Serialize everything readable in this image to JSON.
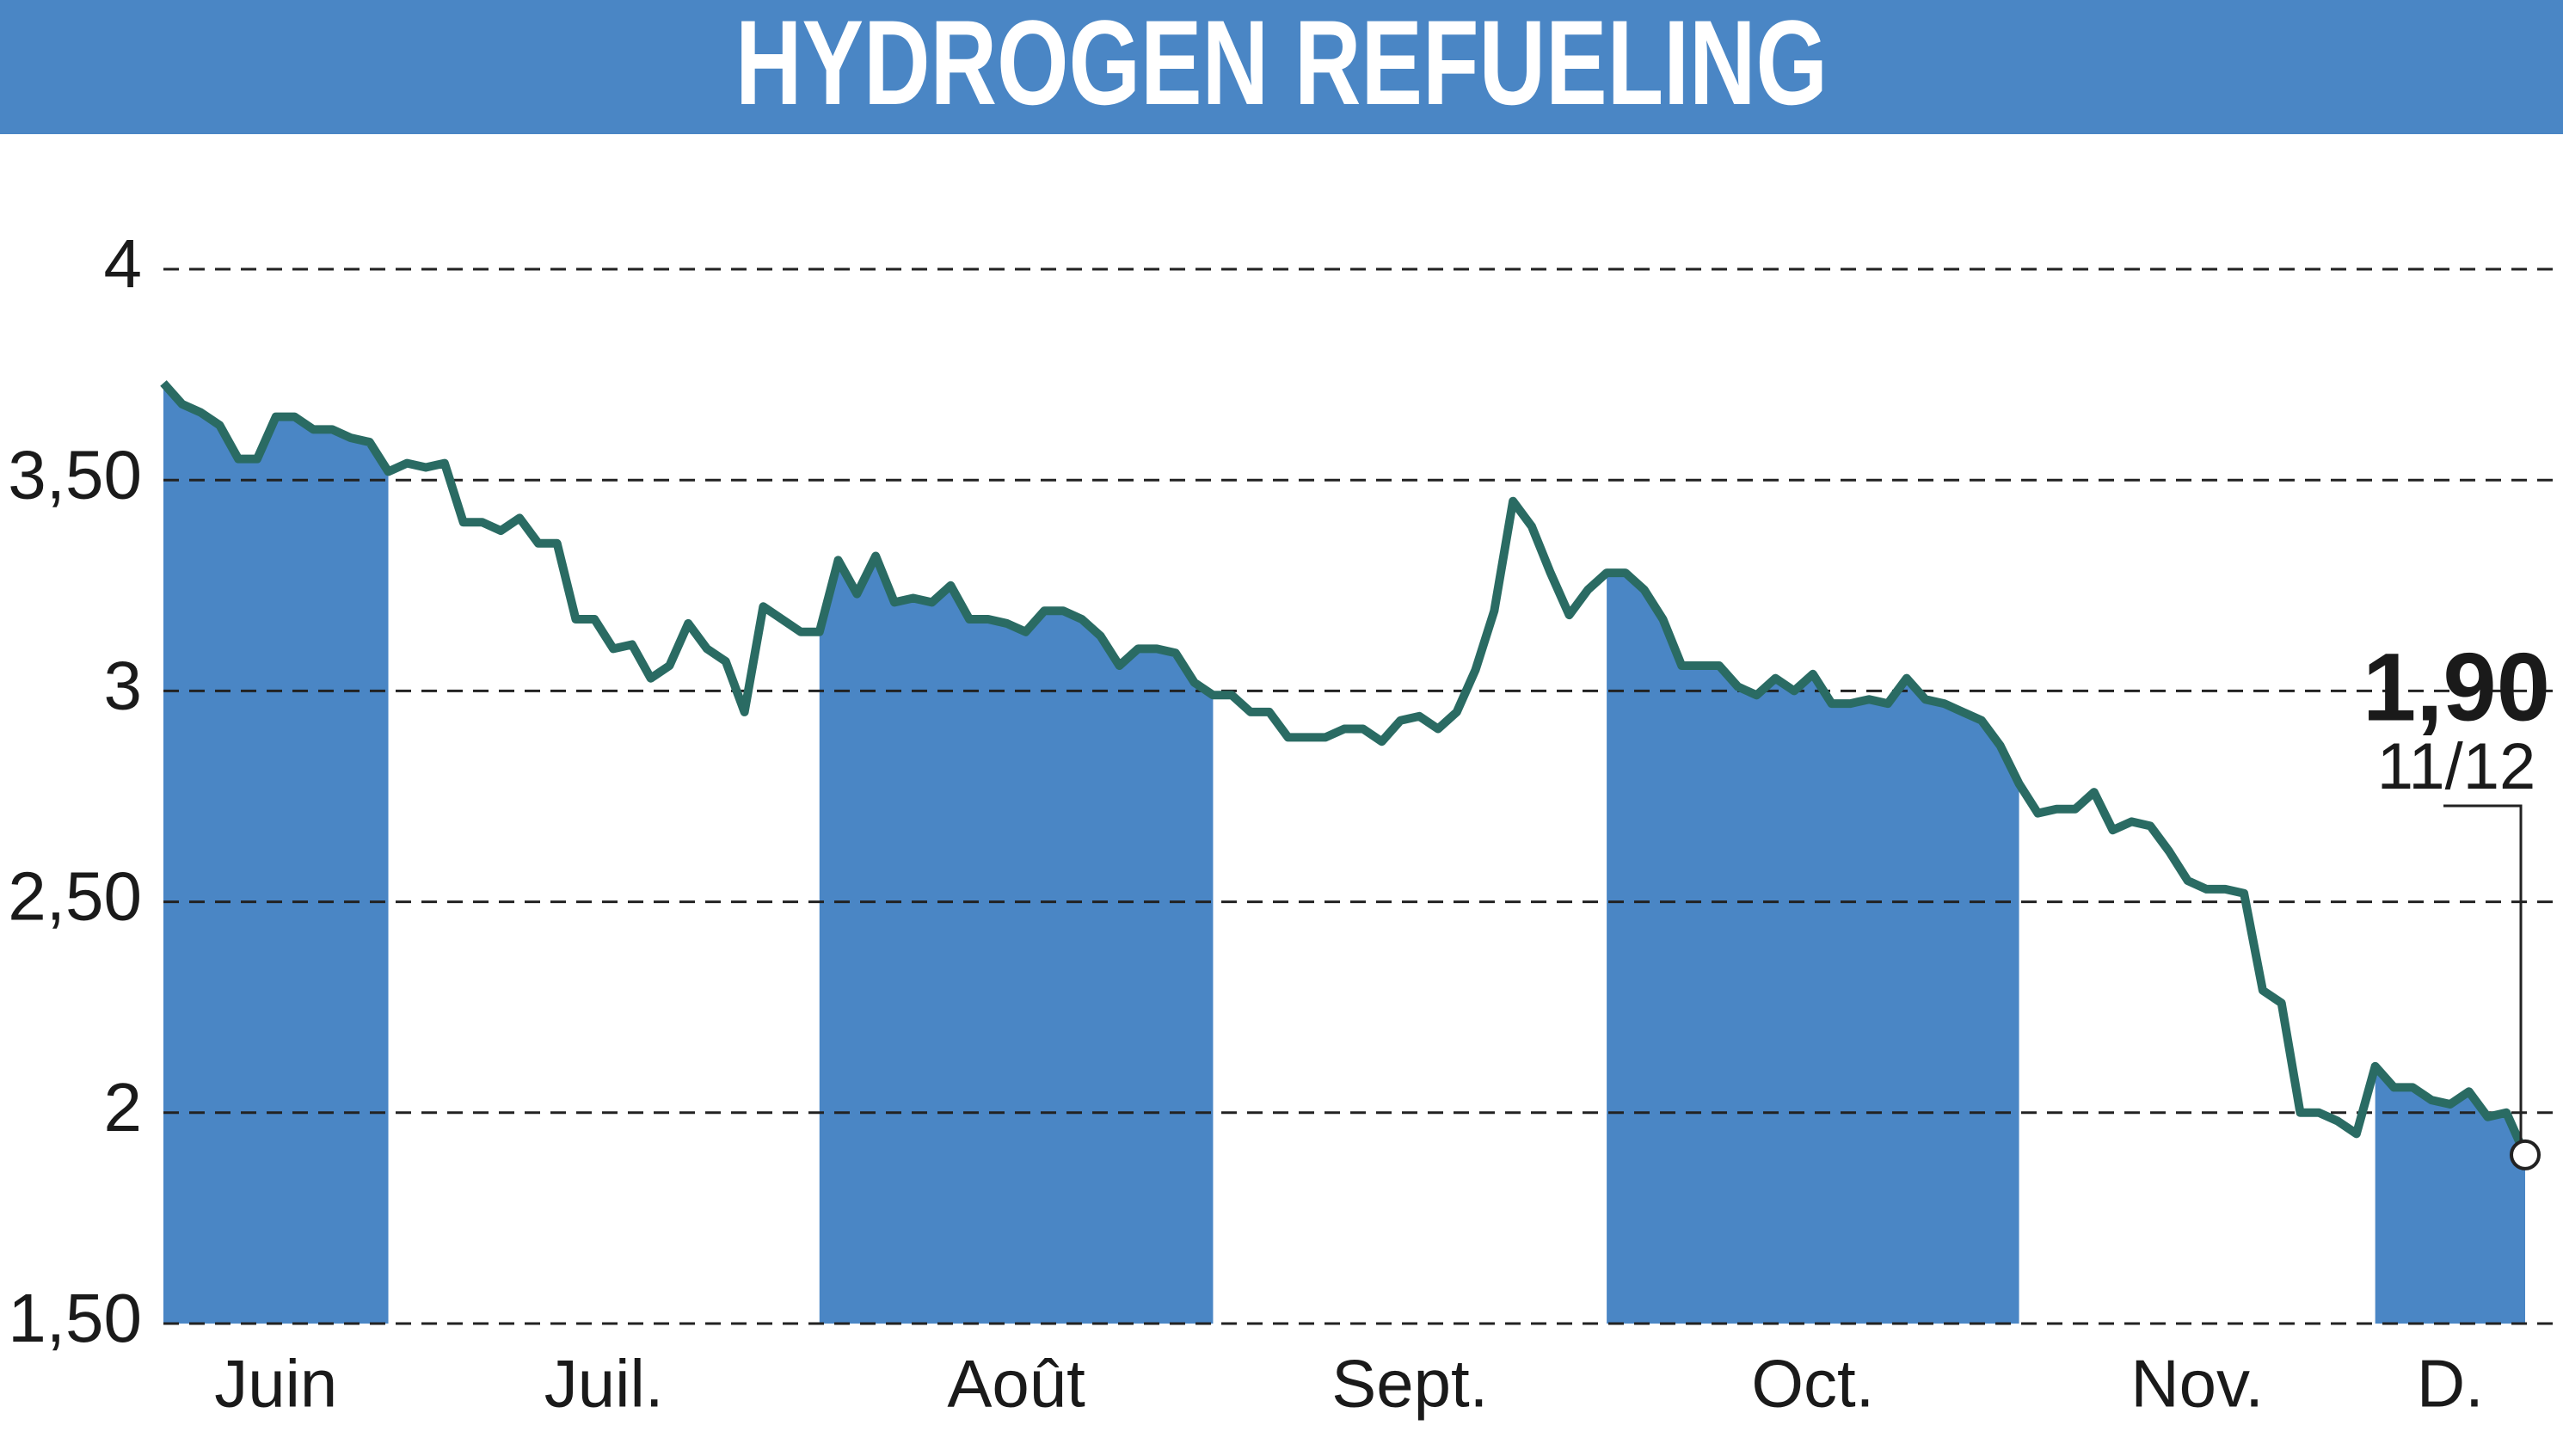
{
  "chart_data": {
    "type": "line",
    "title": "HYDROGEN REFUELING",
    "categories": [
      "Juin",
      null,
      null,
      null,
      null,
      null,
      null,
      null,
      null,
      null,
      null,
      null,
      "Juil.",
      null,
      null,
      null,
      null,
      null,
      null,
      null,
      null,
      null,
      null,
      null,
      null,
      null,
      null,
      null,
      null,
      null,
      null,
      null,
      null,
      null,
      null,
      "Août",
      null,
      null,
      null,
      null,
      null,
      null,
      null,
      null,
      null,
      null,
      null,
      null,
      null,
      null,
      null,
      null,
      null,
      null,
      null,
      null,
      "Sept.",
      null,
      null,
      null,
      null,
      null,
      null,
      null,
      null,
      null,
      null,
      null,
      null,
      null,
      null,
      null,
      null,
      null,
      null,
      null,
      null,
      "Oct.",
      null,
      null,
      null,
      null,
      null,
      null,
      null,
      null,
      null,
      null,
      null,
      null,
      null,
      null,
      null,
      null,
      null,
      null,
      null,
      null,
      null,
      "Nov.",
      null,
      null,
      null,
      null,
      null,
      null,
      null,
      null,
      null,
      null,
      null,
      null,
      null,
      null,
      null,
      null,
      null,
      null,
      "D.",
      null,
      null,
      null,
      null,
      null,
      null,
      null,
      null
    ],
    "values": [
      3.73,
      3.68,
      3.66,
      3.63,
      3.55,
      3.55,
      3.65,
      3.65,
      3.62,
      3.62,
      3.6,
      3.59,
      3.52,
      3.54,
      3.53,
      3.54,
      3.4,
      3.4,
      3.38,
      3.41,
      3.35,
      3.35,
      3.17,
      3.17,
      3.1,
      3.11,
      3.03,
      3.06,
      3.16,
      3.1,
      3.07,
      2.95,
      3.2,
      3.17,
      3.14,
      3.14,
      3.31,
      3.23,
      3.32,
      3.21,
      3.22,
      3.21,
      3.25,
      3.17,
      3.17,
      3.16,
      3.14,
      3.19,
      3.19,
      3.17,
      3.13,
      3.06,
      3.1,
      3.1,
      3.09,
      3.02,
      2.99,
      2.99,
      2.95,
      2.95,
      2.89,
      2.89,
      2.89,
      2.91,
      2.91,
      2.88,
      2.93,
      2.94,
      2.91,
      2.95,
      3.05,
      3.19,
      3.45,
      3.39,
      3.28,
      3.18,
      3.24,
      3.28,
      3.28,
      3.24,
      3.17,
      3.06,
      3.06,
      3.06,
      3.01,
      2.99,
      3.03,
      3.0,
      3.04,
      2.97,
      2.97,
      2.98,
      2.97,
      3.03,
      2.98,
      2.97,
      2.95,
      2.93,
      2.87,
      2.78,
      2.71,
      2.72,
      2.72,
      2.76,
      2.67,
      2.69,
      2.68,
      2.62,
      2.55,
      2.53,
      2.53,
      2.52,
      2.29,
      2.26,
      2.0,
      2.0,
      1.98,
      1.95,
      2.11,
      2.06,
      2.06,
      2.03,
      2.02,
      2.05,
      1.99,
      2.0,
      1.9
    ],
    "value_labels": [
      null,
      null,
      null,
      null,
      null,
      null,
      null,
      null,
      null,
      null,
      null,
      null,
      null,
      null,
      null,
      null,
      null,
      null,
      null,
      null,
      null,
      null,
      null,
      null,
      null,
      null,
      null,
      null,
      null,
      null,
      null,
      null,
      null,
      null,
      null,
      null,
      null,
      null,
      null,
      null,
      null,
      null,
      null,
      null,
      null,
      null,
      null,
      null,
      null,
      null,
      null,
      null,
      null,
      null,
      null,
      null,
      null,
      null,
      null,
      null,
      null,
      null,
      null,
      null,
      null,
      null,
      null,
      null,
      null,
      null,
      null,
      null,
      null,
      null,
      null,
      null,
      null,
      null,
      null,
      null,
      null,
      null,
      null,
      null,
      null,
      null,
      null,
      null,
      null,
      null,
      null,
      null,
      null,
      null,
      null,
      null,
      null,
      null,
      null,
      null,
      null,
      null,
      null,
      null,
      null,
      null,
      null,
      null,
      null,
      null,
      null,
      null,
      null,
      null,
      null,
      null,
      null,
      null,
      null,
      null,
      null,
      null,
      null,
      null,
      null,
      null,
      "1,90"
    ],
    "last_date": "11/12",
    "color": "#2a6b63",
    "band_color": "#4a86c5",
    "ylim": [
      1.5,
      4
    ],
    "yticks": [
      {
        "value": 1.5,
        "label": "1,50"
      },
      2,
      {
        "value": 2.5,
        "label": "2,50"
      },
      3,
      {
        "value": 3.5,
        "label": "3,50"
      },
      4
    ],
    "grid": true
  }
}
